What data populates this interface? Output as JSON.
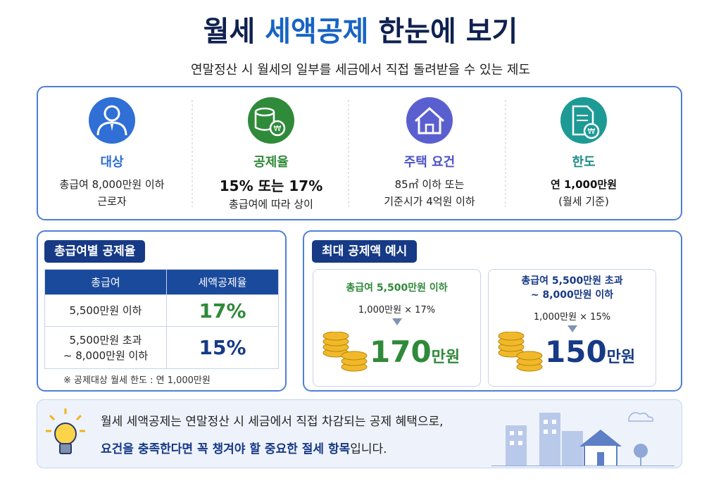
{
  "header": {
    "title_parts": [
      "월세",
      "세액공제",
      "한눈에 보기"
    ],
    "subtitle": "연말정산 시 월세의 일부를 세금에서 직접 돌려받을 수 있는 제도"
  },
  "summary": [
    {
      "label": "대상",
      "lines": [
        "총급여 8,000만원 이하",
        "근로자"
      ]
    },
    {
      "label": "공제율",
      "lines": [
        "15% 또는 17%",
        "총급여에 따라 상이"
      ]
    },
    {
      "label": "주택 요건",
      "lines": [
        "85㎡ 이하 또는",
        "기준시가 4억원 이하"
      ]
    },
    {
      "label": "한도",
      "lines": [
        "연 1,000만원",
        "(월세 기준)"
      ]
    }
  ],
  "rate_table": {
    "title": "총급여별 공제율",
    "headers": [
      "총급여",
      "세액공제율"
    ],
    "rows": [
      [
        [
          "5,500만원 이하"
        ],
        "17%"
      ],
      [
        [
          "5,500만원 초과",
          "~ 8,000만원 이하"
        ],
        "15%"
      ]
    ],
    "note": "※ 공제대상 월세 한도 : 연 1,000만원"
  },
  "example": {
    "title": "최대 공제액 예시",
    "cases": [
      {
        "heading": [
          "총급여 5,500만원 이하"
        ],
        "calc": "1,000만원 × 17%",
        "amount": "170",
        "unit": "만원"
      },
      {
        "heading": [
          "총급여 5,500만원 초과",
          "~ 8,000만원 이하"
        ],
        "calc": "1,000만원 × 15%",
        "amount": "150",
        "unit": "만원"
      }
    ]
  },
  "footer": {
    "line1": "월세 세액공제는 연말정산 시 세금에서 직접 차감되는 공제 혜택으로,",
    "highlight": "요건을 충족한다면 꼭 챙겨야 할 중요한 절세 항목",
    "tail": "입니다."
  }
}
